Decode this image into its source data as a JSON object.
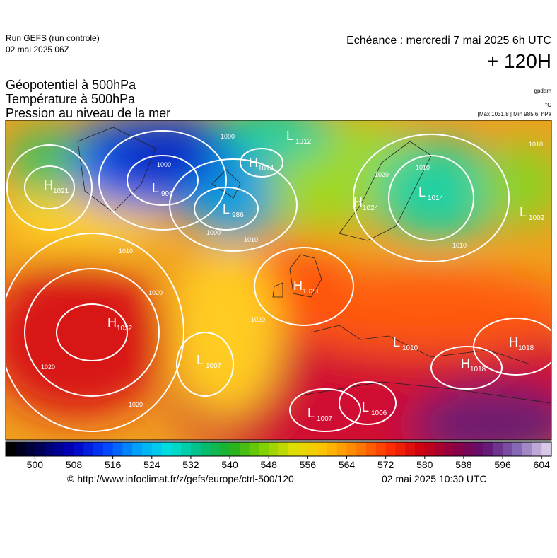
{
  "header": {
    "run": "Run GEFS (run controle)",
    "run_date": "02 mai 2025 06Z",
    "echeance": "Echéance : mercredi 7 mai 2025 6h UTC",
    "lead": "+ 120H"
  },
  "fields": [
    "Géopotentiel à 500hPa",
    "Température à 500hPa",
    "Pression au niveau de la mer"
  ],
  "units": {
    "geopotential": "gpdam",
    "temperature": "°C",
    "pressure": "[Max 1031.8 | Min 985.6] hPa"
  },
  "centers": [
    {
      "letter": "H",
      "value": 1021
    },
    {
      "letter": "L",
      "value": 996
    },
    {
      "letter": "H",
      "value": 1014
    },
    {
      "letter": "L",
      "value": 1012
    },
    {
      "letter": "L",
      "value": 986
    },
    {
      "letter": "H",
      "value": 1024
    },
    {
      "letter": "L",
      "value": 1014
    },
    {
      "letter": "L",
      "value": 1002
    },
    {
      "letter": "H",
      "value": 1023
    },
    {
      "letter": "H",
      "value": 1032
    },
    {
      "letter": "L",
      "value": 1007
    },
    {
      "letter": "L",
      "value": 1010
    },
    {
      "letter": "H",
      "value": 1018
    },
    {
      "letter": "H",
      "value": 1018
    },
    {
      "letter": "L",
      "value": 1007
    },
    {
      "letter": "L",
      "value": 1006
    }
  ],
  "isobar_labels": [
    1000,
    1000,
    1000,
    1010,
    1010,
    1020,
    1020,
    1020,
    1020,
    1010,
    1010,
    1010,
    1020
  ],
  "colorbar": {
    "range": [
      494,
      606
    ],
    "ticks": [
      500,
      508,
      516,
      524,
      532,
      540,
      548,
      556,
      564,
      572,
      580,
      588,
      596,
      604
    ]
  },
  "footer": {
    "source": "© http://www.infoclimat.fr/z/gefs/europe/ctrl-500/120",
    "issued": "02 mai 2025 10:30 UTC"
  }
}
